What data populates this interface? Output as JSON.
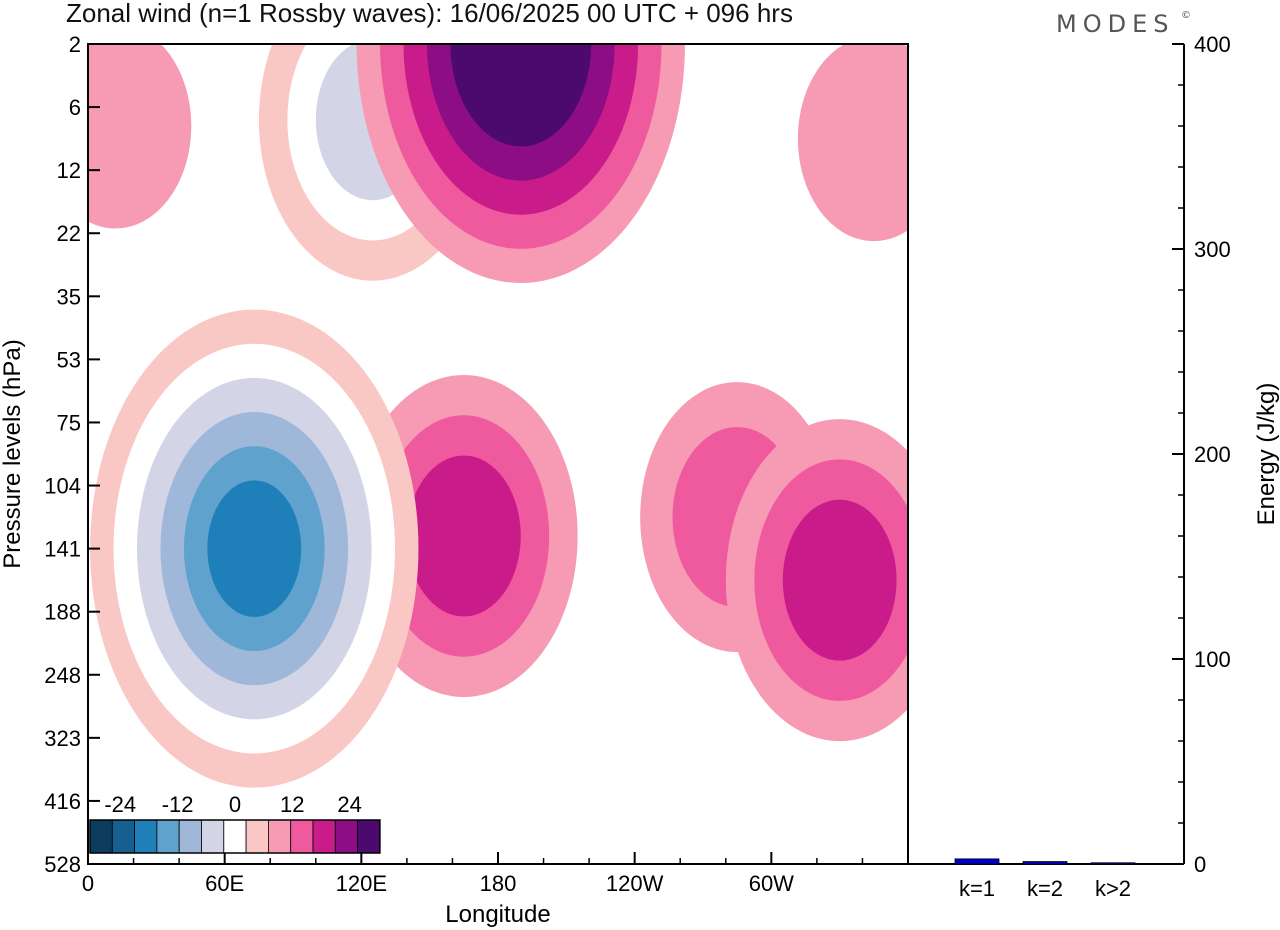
{
  "header": {
    "title": "Zonal wind (n=1 Rossby waves):  16/06/2025  00 UTC  + 096 hrs",
    "brand": "MODES",
    "brand_mark": "©"
  },
  "chart_data": [
    {
      "type": "heatmap",
      "title": "Zonal wind (n=1 Rossby waves):  16/06/2025  00 UTC  + 096 hrs",
      "xlabel": "Longitude",
      "ylabel": "Pressure levels (hPa)",
      "x_ticks": [
        "0",
        "60E",
        "120E",
        "180",
        "120W",
        "60W"
      ],
      "x_tick_values": [
        0,
        60,
        120,
        180,
        240,
        300
      ],
      "xlim": [
        0,
        360
      ],
      "y_ticks": [
        "2",
        "6",
        "12",
        "22",
        "35",
        "53",
        "75",
        "104",
        "141",
        "188",
        "248",
        "323",
        "416",
        "528"
      ],
      "y_tick_index": [
        0,
        1,
        2,
        3,
        4,
        5,
        6,
        7,
        8,
        9,
        10,
        11,
        12,
        13
      ],
      "y_order": "top-to-bottom",
      "colorbar": {
        "labels": [
          "-24",
          "-12",
          "0",
          "12",
          "24"
        ],
        "label_values": [
          -24,
          -12,
          0,
          12,
          24
        ],
        "levels": [
          -28,
          -24,
          -20,
          -16,
          -12,
          -8,
          -4,
          4,
          8,
          12,
          16,
          20,
          24,
          28
        ],
        "colors": [
          "#0d3d5c",
          "#155f91",
          "#1f7fb8",
          "#5fa2cd",
          "#9fb8da",
          "#d3d5e7",
          "#ffffff",
          "#f9c7c4",
          "#f69bb3",
          "#ef5a9e",
          "#c91c8a",
          "#8c0d84",
          "#4d0a6e"
        ]
      },
      "features": [
        {
          "sign": "negative",
          "center_lon": 73,
          "center_level": 8,
          "peak_value": -26
        },
        {
          "sign": "negative",
          "center_lon": 125,
          "center_level": 1.2,
          "peak_value": -14
        },
        {
          "sign": "positive",
          "center_lon": 165,
          "center_level": 7.8,
          "peak_value": 14
        },
        {
          "sign": "positive",
          "center_lon": 190,
          "center_level": 0,
          "peak_value": 26
        },
        {
          "sign": "positive",
          "center_lon": 330,
          "center_level": 8.5,
          "peak_value": 14
        },
        {
          "sign": "positive",
          "center_lon": 285,
          "center_level": 7.5,
          "peak_value": 10
        },
        {
          "sign": "positive",
          "center_lon": 12,
          "center_level": 1.3,
          "peak_value": 5
        },
        {
          "sign": "positive",
          "center_lon": 345,
          "center_level": 1.5,
          "peak_value": 5
        }
      ]
    },
    {
      "type": "bar",
      "categories": [
        "k=1",
        "k=2",
        "k>2"
      ],
      "values": [
        2.5,
        1.2,
        0.6
      ],
      "ylabel": "Energy (J/kg)",
      "ylim": [
        0,
        400
      ],
      "y_ticks": [
        0,
        100,
        200,
        300,
        400
      ],
      "bar_color": "#0000cc"
    }
  ]
}
